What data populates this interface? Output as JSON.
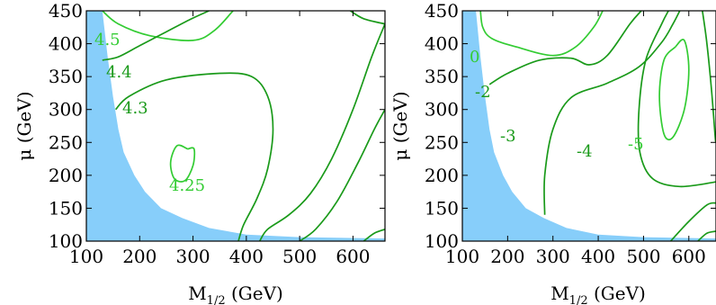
{
  "colors": {
    "excluded_region": "#87cefa",
    "contour_dark": "#1a9a1a",
    "contour_light": "#33cc33",
    "axis": "#000000"
  },
  "chart_data": [
    {
      "type": "contour",
      "xlabel": "M",
      "xlabel_sub": "1/2",
      "xlabel_unit": " (GeV)",
      "ylabel": "μ (GeV)",
      "xlim": [
        100,
        660
      ],
      "ylim": [
        100,
        450
      ],
      "xticks": [
        "100",
        "200",
        "300",
        "400",
        "500",
        "600"
      ],
      "yticks": [
        "100",
        "150",
        "200",
        "250",
        "300",
        "350",
        "400",
        "450"
      ],
      "grid": false,
      "excluded_region": [
        [
          100,
          450
        ],
        [
          130,
          450
        ],
        [
          140,
          380
        ],
        [
          150,
          320
        ],
        [
          160,
          270
        ],
        [
          170,
          235
        ],
        [
          190,
          200
        ],
        [
          210,
          175
        ],
        [
          240,
          150
        ],
        [
          280,
          135
        ],
        [
          330,
          120
        ],
        [
          400,
          110
        ],
        [
          500,
          106
        ],
        [
          660,
          104
        ],
        [
          660,
          100
        ],
        [
          100,
          100
        ]
      ],
      "contours": [
        {
          "label": "4.5",
          "color": "light",
          "points": [
            [
              130,
              450
            ],
            [
              160,
              430
            ],
            [
              220,
              412
            ],
            [
              300,
              405
            ],
            [
              340,
              420
            ],
            [
              375,
              450
            ]
          ]
        },
        {
          "label": "4.4",
          "color": "dark",
          "points": [
            [
              130,
              375
            ],
            [
              160,
              380
            ],
            [
              200,
              397
            ],
            [
              250,
              418
            ],
            [
              295,
              437
            ],
            [
              330,
              450
            ]
          ]
        },
        {
          "label": "4.3",
          "color": "dark",
          "points": [
            [
              155,
              300
            ],
            [
              180,
              320
            ],
            [
              250,
              345
            ],
            [
              350,
              355
            ],
            [
              410,
              350
            ],
            [
              440,
              320
            ],
            [
              450,
              270
            ],
            [
              440,
              210
            ],
            [
              420,
              165
            ],
            [
              395,
              125
            ],
            [
              385,
              100
            ]
          ]
        },
        {
          "label": "4.25",
          "color": "light",
          "points": [
            [
              290,
              240
            ],
            [
              270,
              245
            ],
            [
              258,
              220
            ],
            [
              265,
              195
            ],
            [
              285,
              192
            ],
            [
              300,
              215
            ],
            [
              302,
              240
            ],
            [
              290,
              240
            ]
          ]
        },
        {
          "label": "",
          "color": "dark",
          "points": [
            [
              425,
              100
            ],
            [
              440,
              118
            ],
            [
              480,
              140
            ],
            [
              520,
              172
            ],
            [
              560,
              225
            ],
            [
              600,
              300
            ],
            [
              635,
              380
            ],
            [
              660,
              430
            ]
          ]
        },
        {
          "label": "",
          "color": "dark",
          "points": [
            [
              500,
              100
            ],
            [
              530,
              118
            ],
            [
              570,
              160
            ],
            [
              610,
              220
            ],
            [
              640,
              270
            ],
            [
              660,
              300
            ]
          ]
        },
        {
          "label": "",
          "color": "dark",
          "points": [
            [
              620,
              100
            ],
            [
              640,
              112
            ],
            [
              660,
              118
            ]
          ]
        },
        {
          "label": "",
          "color": "dark",
          "points": [
            [
              595,
              450
            ],
            [
              620,
              438
            ],
            [
              660,
              430
            ]
          ]
        }
      ]
    },
    {
      "type": "contour",
      "xlabel": "M",
      "xlabel_sub": "1/2",
      "xlabel_unit": " (GeV)",
      "ylabel": "μ (GeV)",
      "xlim": [
        100,
        660
      ],
      "ylim": [
        100,
        450
      ],
      "xticks": [
        "100",
        "200",
        "300",
        "400",
        "500",
        "600"
      ],
      "yticks": [
        "100",
        "150",
        "200",
        "250",
        "300",
        "350",
        "400",
        "450"
      ],
      "grid": false,
      "excluded_region": [
        [
          100,
          450
        ],
        [
          130,
          450
        ],
        [
          140,
          380
        ],
        [
          150,
          320
        ],
        [
          160,
          270
        ],
        [
          170,
          235
        ],
        [
          190,
          200
        ],
        [
          210,
          175
        ],
        [
          240,
          150
        ],
        [
          280,
          135
        ],
        [
          330,
          120
        ],
        [
          400,
          110
        ],
        [
          500,
          106
        ],
        [
          660,
          104
        ],
        [
          660,
          100
        ],
        [
          100,
          100
        ]
      ],
      "contours": [
        {
          "label": "0",
          "color": "light",
          "points": [
            [
              140,
              450
            ],
            [
              145,
              425
            ],
            [
              165,
              408
            ],
            [
              220,
              395
            ],
            [
              300,
              382
            ],
            [
              350,
              395
            ],
            [
              390,
              425
            ],
            [
              410,
              450
            ]
          ]
        },
        {
          "label": "-2",
          "color": "dark",
          "points": [
            [
              160,
              338
            ],
            [
              200,
              355
            ],
            [
              270,
              375
            ],
            [
              340,
              378
            ],
            [
              380,
              368
            ],
            [
              420,
              382
            ],
            [
              470,
              430
            ],
            [
              495,
              450
            ]
          ]
        },
        {
          "label": "-3",
          "color": "dark",
          "points": [
            [
              282,
              140
            ],
            [
              282,
              200
            ],
            [
              300,
              270
            ],
            [
              340,
              318
            ],
            [
              420,
              340
            ],
            [
              490,
              365
            ],
            [
              540,
              402
            ],
            [
              565,
              430
            ],
            [
              580,
              450
            ]
          ]
        },
        {
          "label": "-4",
          "color": "dark",
          "points": [
            [
              660,
              190
            ],
            [
              580,
              183
            ],
            [
              520,
              195
            ],
            [
              492,
              235
            ],
            [
              490,
              300
            ],
            [
              505,
              375
            ],
            [
              540,
              430
            ],
            [
              555,
              450
            ]
          ]
        },
        {
          "label": "-5",
          "color": "light",
          "points": [
            [
              570,
              395
            ],
            [
              545,
              375
            ],
            [
              535,
              320
            ],
            [
              545,
              263
            ],
            [
              565,
              258
            ],
            [
              590,
              300
            ],
            [
              600,
              360
            ],
            [
              590,
              405
            ],
            [
              570,
              395
            ]
          ]
        },
        {
          "label": "",
          "color": "dark",
          "points": [
            [
              630,
              450
            ],
            [
              640,
              400
            ],
            [
              650,
              330
            ],
            [
              658,
              260
            ],
            [
              660,
              250
            ]
          ]
        },
        {
          "label": "",
          "color": "dark",
          "points": [
            [
              560,
              100
            ],
            [
              600,
              130
            ],
            [
              640,
              155
            ],
            [
              660,
              158
            ]
          ]
        },
        {
          "label": "",
          "color": "dark",
          "points": [
            [
              620,
              100
            ],
            [
              640,
              112
            ],
            [
              660,
              115
            ]
          ]
        }
      ]
    }
  ]
}
